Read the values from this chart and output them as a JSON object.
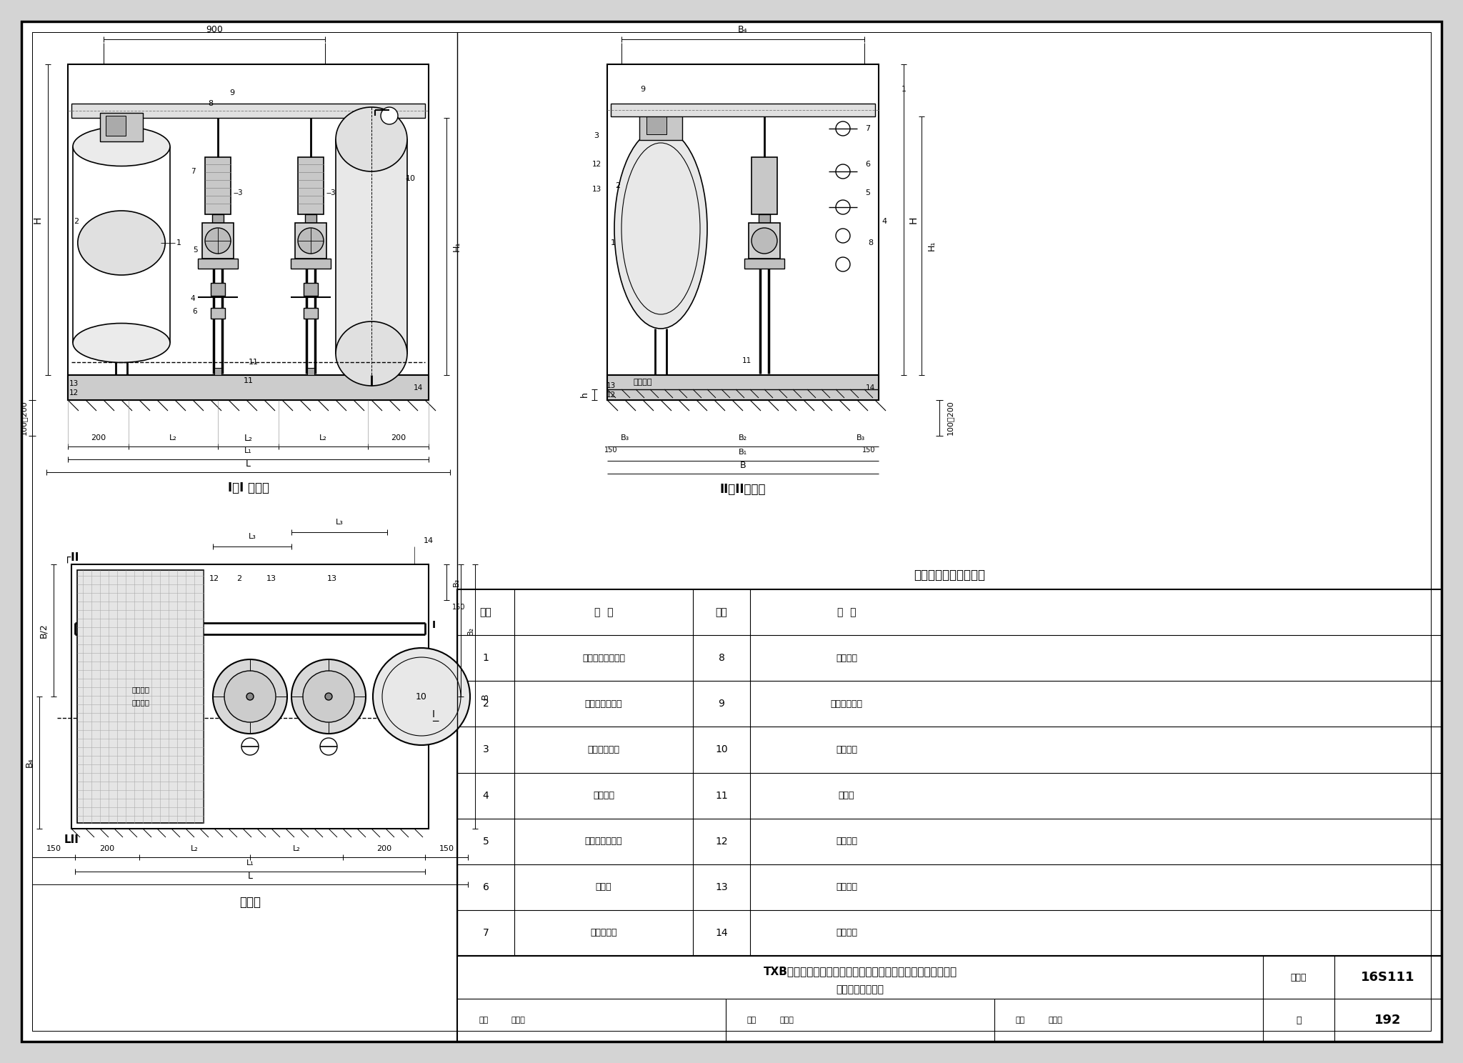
{
  "bg_color": "#d4d4d4",
  "paper_color": "#ffffff",
  "line_color": "#000000",
  "title_main": "TXB系列微机控制叠片同步自吸变频调速供水设备外形及安装图",
  "title_sub": "（两用一备泵组）",
  "tu_ji_hao": "图集号",
  "tu_ji_val": "16S111",
  "ye_label": "页",
  "ye_val": "192",
  "shen_he": "审核",
  "shen_he_name": "罗定元",
  "jiao_dui": "校对",
  "jiao_dui_name": "尹忠珍",
  "she_ji": "设计",
  "she_ji_name": "陈加兵",
  "table_title": "设备部件及安装名称表",
  "items": [
    {
      "num": "1",
      "name": "叠片同步自吸装置",
      "num2": "8",
      "name2": "出水总管"
    },
    {
      "num": "2",
      "name": "自吸快速排气管",
      "num2": "9",
      "name2": "电接点压力表"
    },
    {
      "num": "3",
      "name": "立式单级水泵",
      "num2": "10",
      "name2": "气压水罐"
    },
    {
      "num": "4",
      "name": "管道支架",
      "num2": "11",
      "name2": "减振器"
    },
    {
      "num": "5",
      "name": "可曲挠橡胶接头",
      "num2": "12",
      "name2": "设备底座"
    },
    {
      "num": "6",
      "name": "止回阀",
      "num2": "13",
      "name2": "膨胀螺栓"
    },
    {
      "num": "7",
      "name": "出水管阀门",
      "num2": "14",
      "name2": "设备基础"
    }
  ]
}
